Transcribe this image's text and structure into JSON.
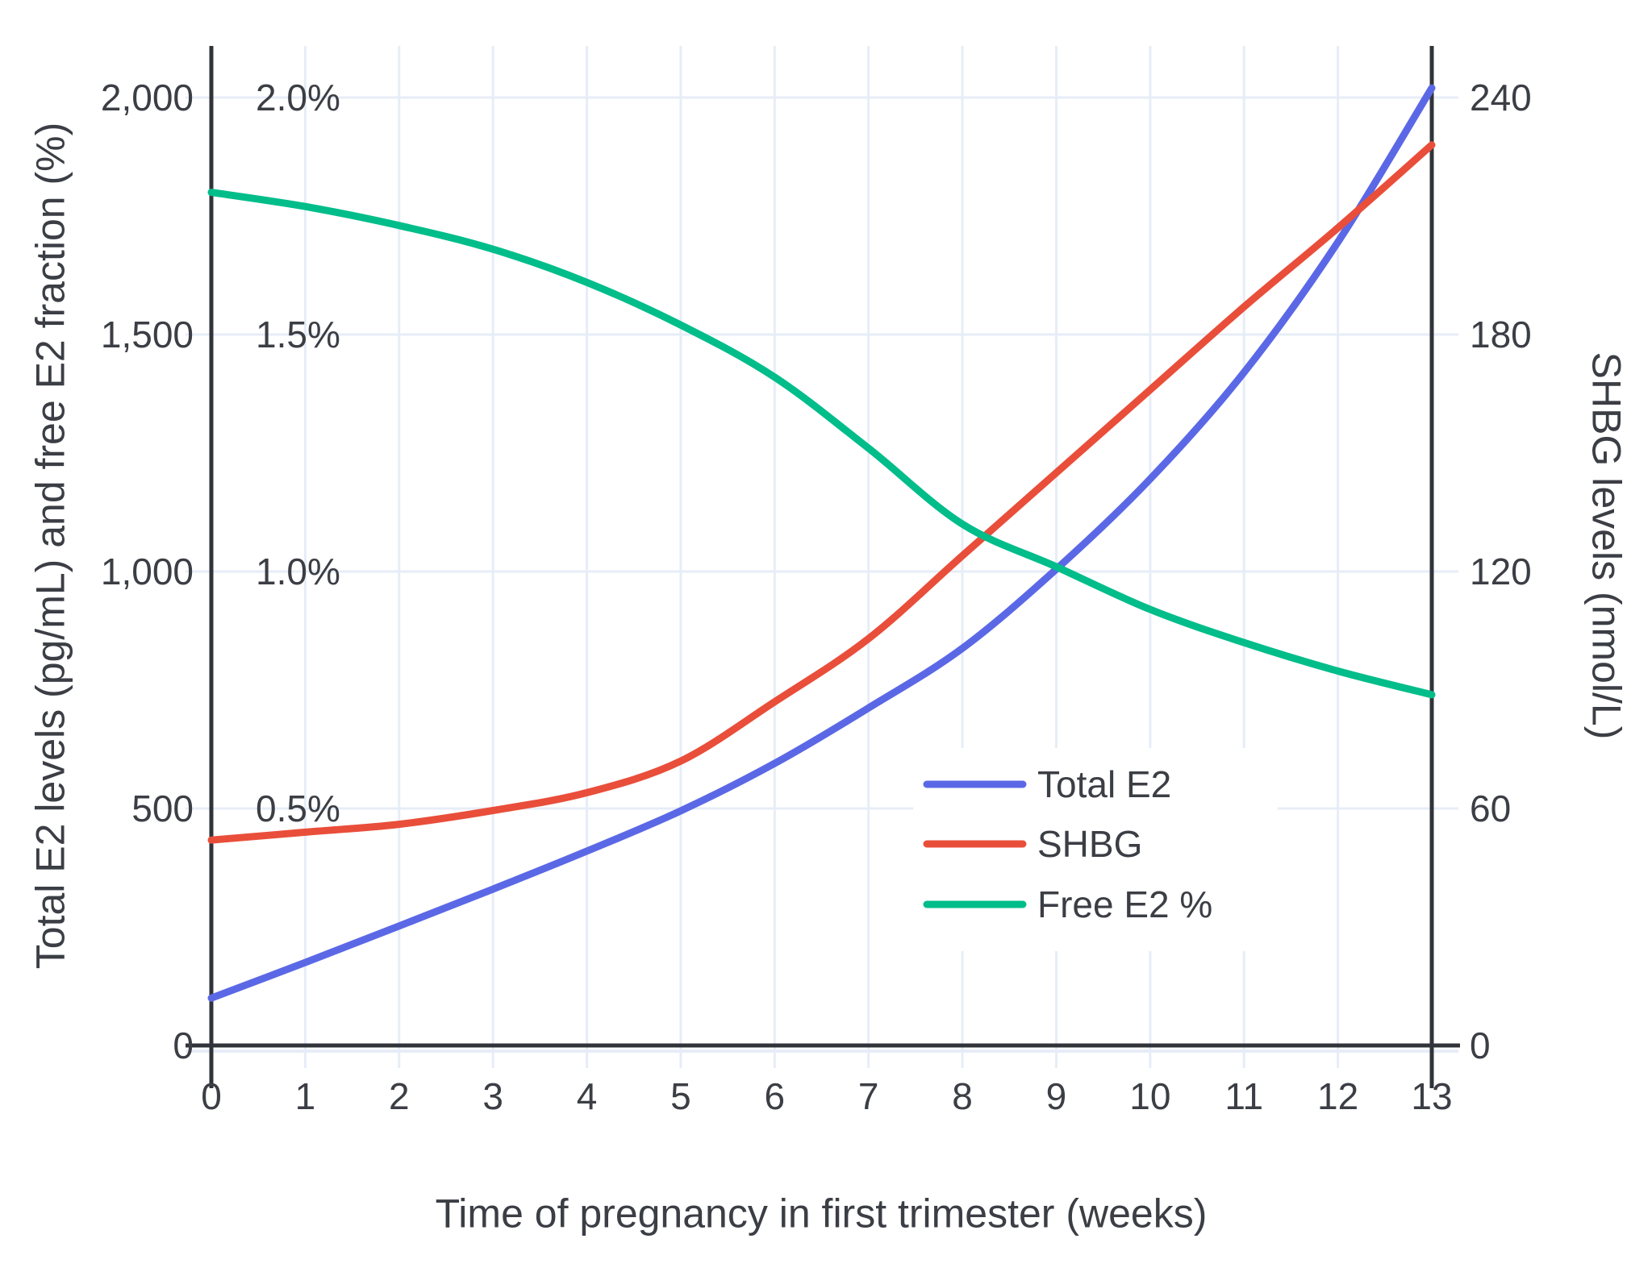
{
  "page": {
    "background": "#ffffff"
  },
  "axes": {
    "x": {
      "title": "Time of pregnancy in first trimester (weeks)",
      "tick_labels": [
        "0",
        "1",
        "2",
        "3",
        "4",
        "5",
        "6",
        "7",
        "8",
        "9",
        "10",
        "11",
        "12",
        "13"
      ],
      "tick_values": [
        0,
        1,
        2,
        3,
        4,
        5,
        6,
        7,
        8,
        9,
        10,
        11,
        12,
        13
      ],
      "range": [
        0,
        13
      ]
    },
    "y_left": {
      "title": "Total E2 levels (pg/mL) and free E2 fraction (%)",
      "tick_labels": [
        "0",
        "500",
        "1,000",
        "1,500",
        "2,000"
      ],
      "tick_values": [
        0,
        500,
        1000,
        1500,
        2000
      ],
      "range": [
        0,
        2150
      ]
    },
    "y_left_pct": {
      "tick_labels": [
        "0.5%",
        "1.0%",
        "1.5%",
        "2.0%"
      ],
      "tick_values": [
        0.5,
        1.0,
        1.5,
        2.0
      ],
      "scale_note": "1% aligns with 1000 pg/mL on left axis"
    },
    "y_right": {
      "title": "SHBG levels (nmol/L)",
      "tick_labels": [
        "0",
        "60",
        "120",
        "180",
        "240"
      ],
      "tick_values": [
        0,
        60,
        120,
        180,
        240
      ],
      "range": [
        0,
        258
      ],
      "scale_note": "60 nmol/L aligns with 500 on left axis"
    }
  },
  "chart_data": {
    "type": "line",
    "title": "",
    "xlabel": "Time of pregnancy in first trimester (weeks)",
    "ylabel": "Total E2 levels (pg/mL) and free E2 fraction (%)",
    "ylabel_right": "SHBG levels (nmol/L)",
    "x": [
      0,
      1,
      2,
      3,
      4,
      5,
      6,
      7,
      8,
      9,
      10,
      11,
      12,
      13
    ],
    "series": [
      {
        "name": "Total E2",
        "axis": "left",
        "unit": "pg/mL",
        "color": "#5b68e6",
        "values": [
          100,
          175,
          252,
          330,
          410,
          495,
          595,
          712,
          838,
          1005,
          1195,
          1420,
          1695,
          2020
        ]
      },
      {
        "name": "SHBG",
        "axis": "right",
        "unit": "nmol/L",
        "color": "#e94e3a",
        "values": [
          52,
          54,
          56,
          59.5,
          64,
          72,
          87,
          103,
          124,
          145,
          166,
          187,
          207,
          228
        ]
      },
      {
        "name": "Free E2 %",
        "axis": "left_pct",
        "unit": "%",
        "color": "#00bd8a",
        "values": [
          1.8,
          1.77,
          1.73,
          1.68,
          1.61,
          1.52,
          1.41,
          1.26,
          1.1,
          1.01,
          0.92,
          0.85,
          0.79,
          0.74
        ]
      }
    ],
    "grid": true,
    "legend_position": "inside bottom-right"
  },
  "colors": {
    "grid": "#e7edf7",
    "axis_line": "#30343a",
    "text": "#3b3e44",
    "legend_bg": "#ffffff"
  }
}
